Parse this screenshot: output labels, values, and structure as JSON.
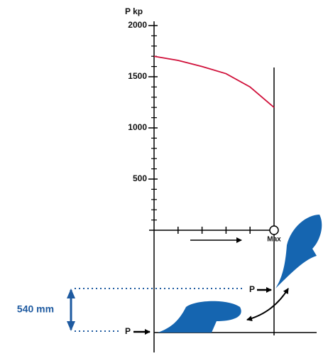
{
  "chart_data": {
    "type": "line",
    "y_label": "P kp",
    "x": [
      0,
      1,
      2,
      3,
      4,
      5
    ],
    "series": [
      {
        "color": "#d0103a",
        "values": [
          1700,
          1660,
          1600,
          1530,
          1400,
          1200
        ]
      }
    ],
    "xlim": [
      0,
      5
    ],
    "xticks": [
      1,
      2,
      3,
      4
    ],
    "ylim": [
      0,
      2000
    ],
    "yticks": [
      500,
      1000,
      1500,
      2000
    ],
    "yminor_ticks": [
      100,
      200,
      300,
      400,
      600,
      700,
      800,
      900,
      1100,
      1200,
      1300,
      1400,
      1600,
      1700,
      1800,
      1900
    ],
    "x_end_label": "Max"
  },
  "diagram": {
    "dimension": "540 mm",
    "force_labels": [
      "P",
      "P"
    ]
  }
}
